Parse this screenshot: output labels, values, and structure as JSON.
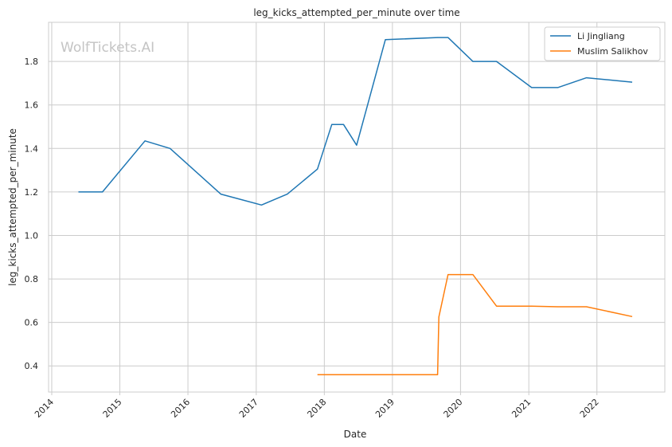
{
  "chart_data": {
    "type": "line",
    "title": "leg_kicks_attempted_per_minute over time",
    "xlabel": "Date",
    "ylabel": "leg_kicks_attempted_per_minute",
    "watermark": "WolfTickets.AI",
    "xlim": [
      "2013-12-15",
      "2022-12-31"
    ],
    "ylim": [
      0.28,
      1.98
    ],
    "x_ticks": [
      "2014",
      "2015",
      "2016",
      "2017",
      "2018",
      "2019",
      "2020",
      "2021",
      "2022"
    ],
    "y_ticks": [
      0.4,
      0.6,
      0.8,
      1.0,
      1.2,
      1.4,
      1.6,
      1.8
    ],
    "grid": true,
    "legend_position": "top-right",
    "series": [
      {
        "name": "Li Jingliang",
        "color": "#1f77b4",
        "points": [
          {
            "x": "2014-05-24",
            "y": 1.2
          },
          {
            "x": "2014-09-30",
            "y": 1.2
          },
          {
            "x": "2015-05-16",
            "y": 1.435
          },
          {
            "x": "2015-09-27",
            "y": 1.4
          },
          {
            "x": "2016-06-25",
            "y": 1.19
          },
          {
            "x": "2017-01-29",
            "y": 1.14
          },
          {
            "x": "2017-06-17",
            "y": 1.19
          },
          {
            "x": "2017-11-25",
            "y": 1.305
          },
          {
            "x": "2018-02-10",
            "y": 1.51
          },
          {
            "x": "2018-04-14",
            "y": 1.51
          },
          {
            "x": "2018-06-23",
            "y": 1.415
          },
          {
            "x": "2018-11-24",
            "y": 1.9
          },
          {
            "x": "2019-08-31",
            "y": 1.91
          },
          {
            "x": "2019-10-26",
            "y": 1.91
          },
          {
            "x": "2020-03-07",
            "y": 1.8
          },
          {
            "x": "2020-07-12",
            "y": 1.8
          },
          {
            "x": "2021-01-16",
            "y": 1.68
          },
          {
            "x": "2021-06-05",
            "y": 1.68
          },
          {
            "x": "2021-11-06",
            "y": 1.725
          },
          {
            "x": "2022-07-09",
            "y": 1.705
          }
        ]
      },
      {
        "name": "Muslim Salikhov",
        "color": "#ff7f0e",
        "points": [
          {
            "x": "2017-11-25",
            "y": 0.36
          },
          {
            "x": "2019-08-31",
            "y": 0.36
          },
          {
            "x": "2019-09-07",
            "y": 0.625
          },
          {
            "x": "2019-10-26",
            "y": 0.82
          },
          {
            "x": "2020-03-07",
            "y": 0.82
          },
          {
            "x": "2020-07-12",
            "y": 0.675
          },
          {
            "x": "2021-01-16",
            "y": 0.675
          },
          {
            "x": "2021-06-05",
            "y": 0.672
          },
          {
            "x": "2021-11-06",
            "y": 0.672
          },
          {
            "x": "2022-07-09",
            "y": 0.627
          }
        ]
      }
    ]
  }
}
